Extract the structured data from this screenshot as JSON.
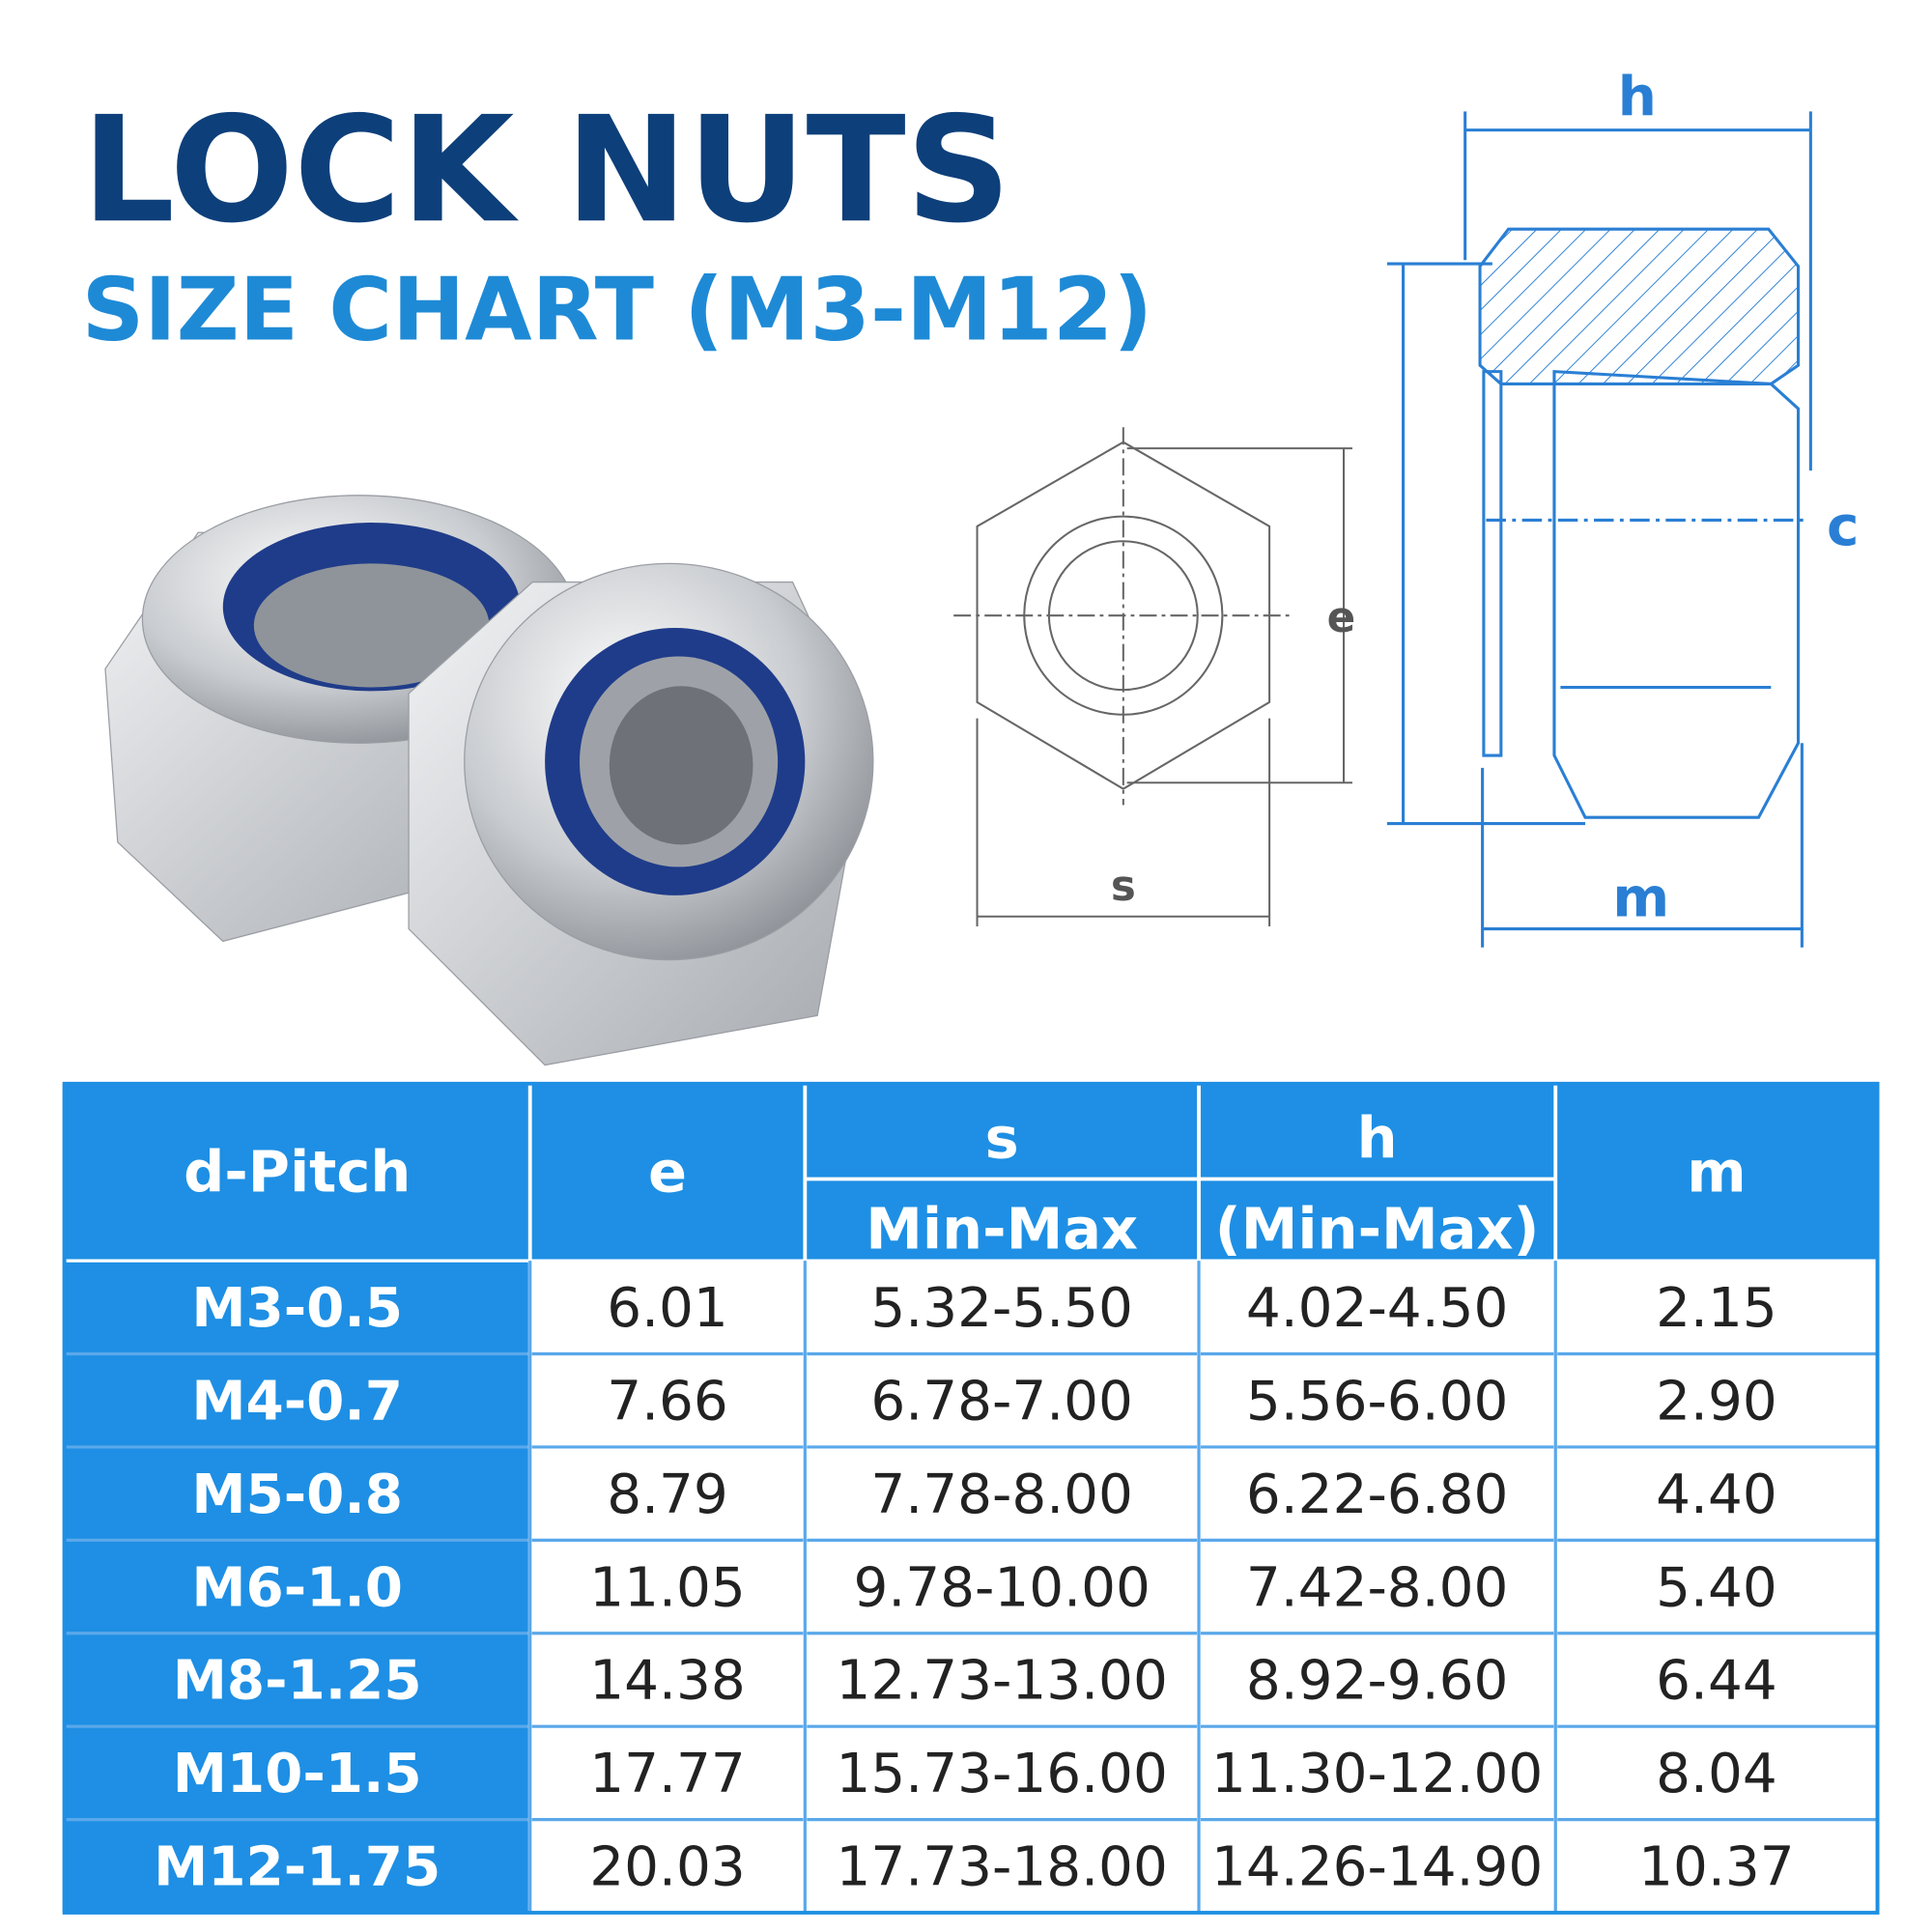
{
  "header": {
    "title": "LOCK NUTS",
    "subtitle": "SIZE CHART (M3-M12)"
  },
  "diagram": {
    "front_labels": {
      "e": "e",
      "s": "s"
    },
    "side_labels": {
      "h": "h",
      "c": "c",
      "m": "m"
    }
  },
  "table": {
    "header": [
      "d-Pitch",
      "e",
      "s",
      "h",
      "m"
    ],
    "subheader": {
      "s": "Min-Max",
      "h": "(Min-Max)"
    },
    "rows": [
      [
        "M3-0.5",
        "6.01",
        "5.32-5.50",
        "4.02-4.50",
        "2.15"
      ],
      [
        "M4-0.7",
        "7.66",
        "6.78-7.00",
        "5.56-6.00",
        "2.90"
      ],
      [
        "M5-0.8",
        "8.79",
        "7.78-8.00",
        "6.22-6.80",
        "4.40"
      ],
      [
        "M6-1.0",
        "11.05",
        "9.78-10.00",
        "7.42-8.00",
        "5.40"
      ],
      [
        "M8-1.25",
        "14.38",
        "12.73-13.00",
        "8.92-9.60",
        "6.44"
      ],
      [
        "M10-1.5",
        "17.77",
        "15.73-16.00",
        "11.30-12.00",
        "8.04"
      ],
      [
        "M12-1.75",
        "20.03",
        "17.73-18.00",
        "14.26-14.90",
        "10.37"
      ]
    ]
  }
}
